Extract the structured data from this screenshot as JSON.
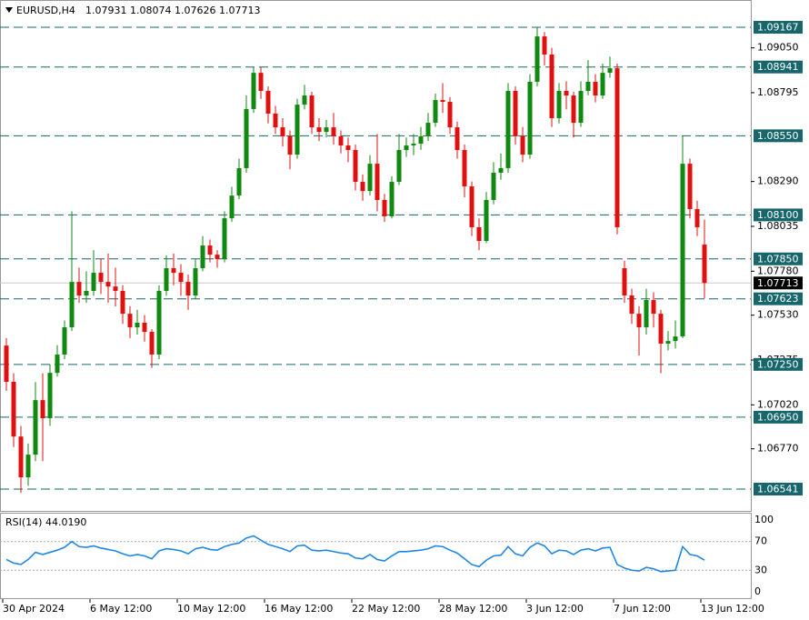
{
  "chart_data": [
    {
      "type": "candlestick",
      "symbol": "EURUSD,H4",
      "ohlc_text": "1.07931 1.08074 1.07626 1.07713",
      "up_color": "#0f8a0f",
      "down_color": "#e01010",
      "level_color": "#17666b",
      "ylim": [
        1.06417,
        1.09322
      ],
      "yticks": [
        {
          "value": 1.0905,
          "label": "1.09050"
        },
        {
          "value": 1.08795,
          "label": "1.08795"
        },
        {
          "value": 1.0829,
          "label": "1.08290"
        },
        {
          "value": 1.08035,
          "label": "1.08035"
        },
        {
          "value": 1.0778,
          "label": "1.07780"
        },
        {
          "value": 1.0753,
          "label": "1.07530"
        },
        {
          "value": 1.07275,
          "label": "1.07275"
        },
        {
          "value": 1.0702,
          "label": "1.07020"
        },
        {
          "value": 1.0677,
          "label": "1.06770"
        }
      ],
      "levels": [
        {
          "value": 1.09167,
          "label": "1.09167"
        },
        {
          "value": 1.08941,
          "label": "1.08941"
        },
        {
          "value": 1.0855,
          "label": "1.08550"
        },
        {
          "value": 1.081,
          "label": "1.08100"
        },
        {
          "value": 1.0785,
          "label": "1.07850"
        },
        {
          "value": 1.07623,
          "label": "1.07623"
        },
        {
          "value": 1.0725,
          "label": "1.07250"
        },
        {
          "value": 1.0695,
          "label": "1.06950"
        },
        {
          "value": 1.06541,
          "label": "1.06541"
        }
      ],
      "last_price": {
        "value": 1.07713,
        "label": "1.07713"
      },
      "xticks": [
        {
          "value": 0,
          "label": "30 Apr 2024"
        },
        {
          "value": 12,
          "label": "6 May 12:00"
        },
        {
          "value": 24,
          "label": "10 May 12:00"
        },
        {
          "value": 36,
          "label": "16 May 12:00"
        },
        {
          "value": 48,
          "label": "22 May 12:00"
        },
        {
          "value": 60,
          "label": "28 May 12:00"
        },
        {
          "value": 72,
          "label": "3 Jun 12:00"
        },
        {
          "value": 84,
          "label": "7 Jun 12:00"
        },
        {
          "value": 96,
          "label": "13 Jun 12:00"
        }
      ],
      "open": [
        1.07357,
        1.07151,
        1.0684,
        1.06608,
        1.06737,
        1.07047,
        1.06944,
        1.07202,
        1.07306,
        1.07461,
        1.07719,
        1.07642,
        1.07668,
        1.07771,
        1.07719,
        1.07693,
        1.07668,
        1.07538,
        1.07461,
        1.07487,
        1.07435,
        1.07306,
        1.07668,
        1.07797,
        1.07771,
        1.07719,
        1.07642,
        1.07797,
        1.07926,
        1.07874,
        1.07849,
        1.08081,
        1.0821,
        1.08366,
        1.08702,
        1.08908,
        1.08805,
        1.08676,
        1.08598,
        1.08547,
        1.08443,
        1.08727,
        1.08779,
        1.08598,
        1.08572,
        1.08598,
        1.08547,
        1.08495,
        1.08469,
        1.08288,
        1.08236,
        1.08391,
        1.08185,
        1.08092,
        1.08288,
        1.08469,
        1.08495,
        1.08505,
        1.08547,
        1.08624,
        1.08753,
        1.08743,
        1.08598,
        1.08469,
        1.08262,
        1.0803,
        1.07952,
        1.08185,
        1.0834,
        1.08366,
        1.08805,
        1.08547,
        1.08443,
        1.08857,
        1.09115,
        1.09012,
        1.0865,
        1.08805,
        1.08779,
        1.08624,
        1.08805,
        1.08857,
        1.08779,
        1.08908,
        1.08934,
        1.07797,
        1.07642,
        1.07538,
        1.07461,
        1.07616,
        1.07538,
        1.07368,
        1.07383,
        1.07409,
        1.08391,
        1.08133,
        1.07931
      ],
      "high": [
        1.074,
        1.072,
        1.069,
        1.068,
        1.0715,
        1.072,
        1.0725,
        1.0736,
        1.075,
        1.0812,
        1.078,
        1.0778,
        1.079,
        1.0785,
        1.0788,
        1.078,
        1.077,
        1.0758,
        1.0756,
        1.0753,
        1.0745,
        1.077,
        1.0787,
        1.0788,
        1.0782,
        1.0776,
        1.0785,
        1.0798,
        1.0796,
        1.079,
        1.0812,
        1.0826,
        1.0842,
        1.0878,
        1.08941,
        1.0894,
        1.0883,
        1.0872,
        1.0865,
        1.0858,
        1.0876,
        1.0884,
        1.088,
        1.0865,
        1.0864,
        1.0868,
        1.0858,
        1.0854,
        1.085,
        1.0833,
        1.0844,
        1.0856,
        1.0822,
        1.0832,
        1.0856,
        1.0854,
        1.0856,
        1.086,
        1.0868,
        1.0879,
        1.0885,
        1.0877,
        1.0863,
        1.085,
        1.0829,
        1.0808,
        1.0823,
        1.084,
        1.0845,
        1.0885,
        1.0883,
        1.086,
        1.089,
        1.09167,
        1.0914,
        1.0905,
        1.0885,
        1.0886,
        1.088,
        1.0886,
        1.0898,
        1.089,
        1.0896,
        1.09,
        1.0896,
        1.0784,
        1.0768,
        1.0758,
        1.0768,
        1.0766,
        1.0756,
        1.0744,
        1.075,
        1.0855,
        1.0842,
        1.0818,
        1.08074
      ],
      "low": [
        1.071,
        1.0678,
        1.0652,
        1.0656,
        1.067,
        1.067,
        1.069,
        1.0718,
        1.0728,
        1.0744,
        1.076,
        1.076,
        1.0764,
        1.0765,
        1.076,
        1.0758,
        1.0748,
        1.074,
        1.0742,
        1.0738,
        1.0723,
        1.0728,
        1.0764,
        1.077,
        1.0764,
        1.0756,
        1.0762,
        1.0778,
        1.0783,
        1.078,
        1.0783,
        1.0806,
        1.0819,
        1.0834,
        1.0868,
        1.0876,
        1.0862,
        1.0856,
        1.0849,
        1.0836,
        1.0842,
        1.087,
        1.0856,
        1.0852,
        1.0854,
        1.085,
        1.0845,
        1.084,
        1.0824,
        1.0818,
        1.0821,
        1.0812,
        1.0806,
        1.0808,
        1.0827,
        1.0843,
        1.0844,
        1.0847,
        1.0852,
        1.086,
        1.0868,
        1.0856,
        1.0842,
        1.082,
        1.0798,
        1.079,
        1.0794,
        1.0816,
        1.083,
        1.0834,
        1.085,
        1.084,
        1.0842,
        1.0883,
        1.0895,
        1.086,
        1.0862,
        1.087,
        1.0854,
        1.086,
        1.0878,
        1.0874,
        1.0876,
        1.0888,
        1.0799,
        1.076,
        1.0748,
        1.073,
        1.0742,
        1.0746,
        1.072,
        1.0733,
        1.0734,
        1.074,
        1.0808,
        1.0798,
        1.07626
      ],
      "close": [
        1.07151,
        1.0684,
        1.06608,
        1.06737,
        1.07047,
        1.06944,
        1.07202,
        1.07306,
        1.07461,
        1.07719,
        1.07642,
        1.07668,
        1.07771,
        1.07719,
        1.07693,
        1.07668,
        1.07538,
        1.07461,
        1.07487,
        1.07435,
        1.07306,
        1.07668,
        1.07797,
        1.07771,
        1.07719,
        1.07642,
        1.07797,
        1.07926,
        1.07874,
        1.07849,
        1.08081,
        1.0821,
        1.08366,
        1.08702,
        1.08908,
        1.08805,
        1.08676,
        1.08598,
        1.08547,
        1.08443,
        1.08727,
        1.08779,
        1.08598,
        1.08572,
        1.08598,
        1.08547,
        1.08495,
        1.08469,
        1.08288,
        1.08236,
        1.08391,
        1.08185,
        1.08092,
        1.08288,
        1.08469,
        1.08495,
        1.08505,
        1.08547,
        1.08624,
        1.08753,
        1.08743,
        1.08598,
        1.08469,
        1.08262,
        1.0803,
        1.07952,
        1.08185,
        1.0834,
        1.08366,
        1.08805,
        1.08547,
        1.08443,
        1.08857,
        1.09115,
        1.09012,
        1.0865,
        1.08805,
        1.08779,
        1.08624,
        1.08805,
        1.08857,
        1.08779,
        1.08908,
        1.08934,
        1.0803,
        1.07642,
        1.07538,
        1.07461,
        1.07616,
        1.07538,
        1.07368,
        1.07383,
        1.07409,
        1.08391,
        1.08133,
        1.0803,
        1.07713
      ]
    },
    {
      "type": "line",
      "title": "RSI(14) 44.0190",
      "color": "#1e88e5",
      "ylim": [
        -9,
        109
      ],
      "yticks": [
        100,
        70,
        30,
        0
      ],
      "levels": [
        70,
        30
      ],
      "values": [
        45,
        40,
        38,
        45,
        55,
        52,
        55,
        58,
        62,
        70,
        63,
        62,
        64,
        61,
        59,
        57,
        53,
        50,
        52,
        50,
        46,
        57,
        60,
        59,
        57,
        53,
        60,
        62,
        59,
        58,
        63,
        66,
        68,
        75,
        78,
        72,
        66,
        63,
        60,
        56,
        64,
        65,
        58,
        57,
        58,
        56,
        54,
        53,
        47,
        46,
        52,
        45,
        43,
        50,
        56,
        56,
        57,
        58,
        60,
        64,
        63,
        58,
        54,
        46,
        38,
        35,
        44,
        50,
        51,
        63,
        53,
        50,
        62,
        68,
        64,
        53,
        58,
        57,
        52,
        58,
        60,
        57,
        61,
        62,
        38,
        33,
        30,
        29,
        34,
        32,
        28,
        29,
        30,
        63,
        52,
        50,
        44.019
      ]
    }
  ]
}
